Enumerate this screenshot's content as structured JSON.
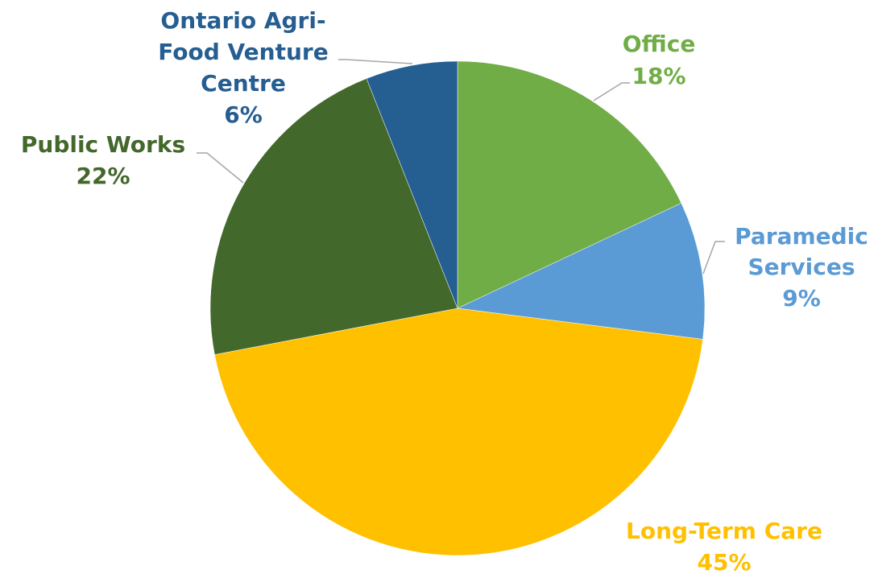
{
  "chart_data": {
    "type": "pie",
    "title": "",
    "start_angle_deg": 0,
    "direction": "clockwise",
    "legend": "none",
    "slices": [
      {
        "key": "office",
        "label": "Office",
        "percent_label": "18%",
        "value": 18,
        "color": "#70ad47"
      },
      {
        "key": "paramedic",
        "label": "Paramedic Services",
        "percent_label": "9%",
        "value": 9,
        "color": "#5b9bd5"
      },
      {
        "key": "ltc",
        "label": "Long-Term Care",
        "percent_label": "45%",
        "value": 45,
        "color": "#ffc000"
      },
      {
        "key": "public",
        "label": "Public Works",
        "percent_label": "22%",
        "value": 22,
        "color": "#43682b"
      },
      {
        "key": "ontario",
        "label": "Ontario Agri-Food Venture Centre",
        "percent_label": "6%",
        "value": 6,
        "color": "#255e91"
      }
    ],
    "label_colors": {
      "office": "#70ad47",
      "paramedic": "#5b9bd5",
      "ltc": "#ffc000",
      "public": "#43682b",
      "ontario": "#255e91"
    }
  }
}
